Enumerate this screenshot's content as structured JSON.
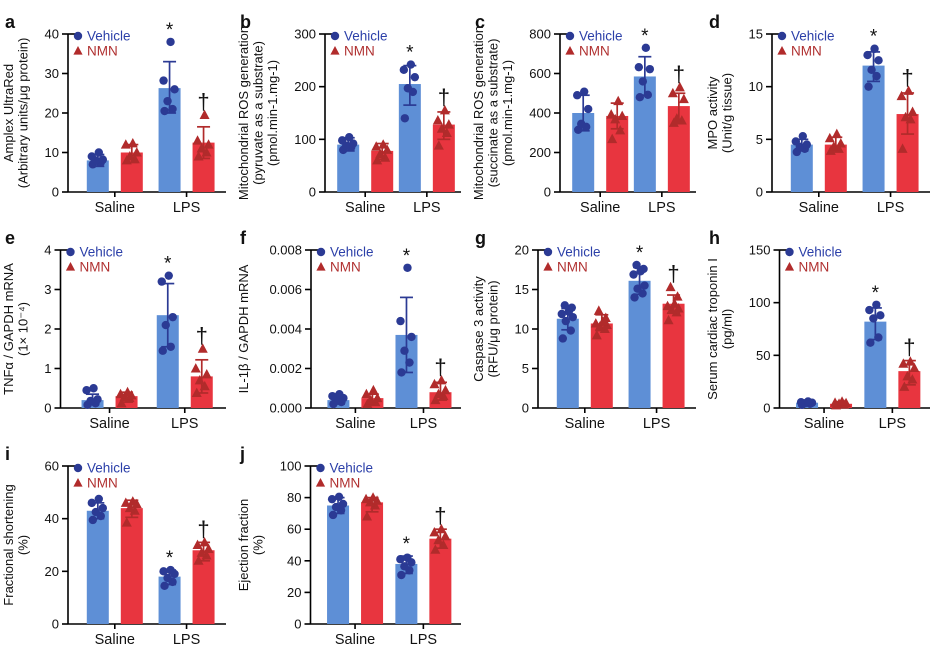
{
  "figure": {
    "legend": {
      "vehicle": "Vehicle",
      "nmn": "NMN"
    },
    "sig_symbols": {
      "lps_vehicle": "*",
      "lps_nmn": "†"
    },
    "colors": {
      "bar_blue": "#5E8FD6",
      "bar_red": "#E8353F",
      "dot_blue": "#2B3A94",
      "dot_red": "#B12B2B",
      "text_blue": "#2B3FA8",
      "text_red": "#B03030",
      "axis": "#000000",
      "letter": "#111111"
    }
  },
  "chart_data": [
    {
      "id": "a",
      "type": "bar",
      "ylabel": [
        "Amplex UltraRed",
        "(Arbitrary units/μg protein)"
      ],
      "ylim": [
        0,
        40
      ],
      "ytick_labels": [
        "0",
        "10",
        "20",
        "30",
        "40"
      ],
      "categories": [
        "Saline",
        "LPS"
      ],
      "series": [
        {
          "name": "Vehicle",
          "marker": "circle",
          "bars": [
            {
              "mean": 8,
              "err": [
                6.5,
                9.5
              ],
              "points": [
                7,
                7.5,
                8,
                8.2,
                9,
                10
              ]
            },
            {
              "mean": 26.3,
              "err": [
                20,
                33
              ],
              "points": [
                20.5,
                21,
                23,
                26,
                28.2,
                38
              ],
              "sig": "*"
            }
          ]
        },
        {
          "name": "NMN",
          "marker": "triangle",
          "bars": [
            {
              "mean": 10,
              "err": [
                7.5,
                12
              ],
              "points": [
                8,
                8.3,
                9,
                10,
                12,
                12.3
              ]
            },
            {
              "mean": 12.5,
              "err": [
                8.5,
                16.5
              ],
              "points": [
                9,
                10,
                11,
                12,
                13,
                19.5
              ],
              "sig": "†"
            }
          ]
        }
      ]
    },
    {
      "id": "b",
      "type": "bar",
      "ylabel": [
        "Mitochondrial ROS generation",
        "(pyruvate as a substrate)",
        "(pmol.min-1.mg-1)"
      ],
      "ylim": [
        0,
        300
      ],
      "ytick_labels": [
        "0",
        "100",
        "200",
        "300"
      ],
      "categories": [
        "Saline",
        "LPS"
      ],
      "series": [
        {
          "name": "Vehicle",
          "marker": "circle",
          "bars": [
            {
              "mean": 90,
              "err": [
                78,
                103
              ],
              "points": [
                80,
                85,
                88,
                92,
                98,
                104
              ]
            },
            {
              "mean": 205,
              "err": [
                165,
                240
              ],
              "points": [
                140,
                190,
                197,
                218,
                232,
                242
              ],
              "sig": "*"
            }
          ]
        },
        {
          "name": "NMN",
          "marker": "triangle",
          "bars": [
            {
              "mean": 78,
              "err": [
                62,
                92
              ],
              "points": [
                60,
                65,
                72,
                80,
                86,
                90
              ]
            },
            {
              "mean": 128,
              "err": [
                100,
                152
              ],
              "points": [
                88,
                112,
                120,
                128,
                136,
                155
              ],
              "sig": "†"
            }
          ]
        }
      ]
    },
    {
      "id": "c",
      "type": "bar",
      "ylabel": [
        "Mitochondrial ROS generation",
        "(succinate as a substrate)",
        "(pmol.min-1.mg-1)"
      ],
      "ylim": [
        0,
        800
      ],
      "ytick_labels": [
        "0",
        "200",
        "400",
        "600",
        "800"
      ],
      "categories": [
        "Saline",
        "LPS"
      ],
      "series": [
        {
          "name": "Vehicle",
          "marker": "circle",
          "bars": [
            {
              "mean": 400,
              "err": [
                310,
                490
              ],
              "points": [
                315,
                330,
                345,
                420,
                490,
                508
              ]
            },
            {
              "mean": 585,
              "err": [
                490,
                685
              ],
              "points": [
                480,
                492,
                560,
                622,
                632,
                730
              ],
              "sig": "*"
            }
          ]
        },
        {
          "name": "NMN",
          "marker": "triangle",
          "bars": [
            {
              "mean": 385,
              "err": [
                320,
                450
              ],
              "points": [
                268,
                312,
                368,
                385,
                392,
                460
              ]
            },
            {
              "mean": 435,
              "err": [
                350,
                500
              ],
              "points": [
                350,
                362,
                372,
                470,
                500,
                530
              ],
              "sig": "†"
            }
          ]
        }
      ]
    },
    {
      "id": "d",
      "type": "bar",
      "ylabel": [
        "MPO activity",
        "(Unit/g tissue)"
      ],
      "ylim": [
        0,
        15
      ],
      "ytick_labels": [
        "0",
        "5",
        "10",
        "15"
      ],
      "categories": [
        "Saline",
        "LPS"
      ],
      "series": [
        {
          "name": "Vehicle",
          "marker": "circle",
          "bars": [
            {
              "mean": 4.5,
              "err": [
                3.9,
                5.0
              ],
              "points": [
                3.8,
                4.1,
                4.3,
                4.5,
                4.8,
                5.3
              ]
            },
            {
              "mean": 12,
              "err": [
                10.5,
                13.3
              ],
              "points": [
                10,
                11,
                11.6,
                12.5,
                13,
                13.6
              ],
              "sig": "*"
            }
          ]
        },
        {
          "name": "NMN",
          "marker": "triangle",
          "bars": [
            {
              "mean": 4.5,
              "err": [
                3.9,
                5.2
              ],
              "points": [
                3.9,
                4.1,
                4.3,
                4.6,
                5.1,
                5.5
              ]
            },
            {
              "mean": 7.4,
              "err": [
                5.5,
                9.4
              ],
              "points": [
                4.1,
                6.9,
                7.1,
                7.6,
                9.1,
                9.6
              ],
              "sig": "†"
            }
          ]
        }
      ]
    },
    {
      "id": "e",
      "type": "bar",
      "ylabel": [
        "TNFα / GAPDH mRNA",
        "(1× 10⁻⁴)"
      ],
      "ylim": [
        0,
        4
      ],
      "ytick_labels": [
        "0",
        "1",
        "2",
        "3",
        "4"
      ],
      "categories": [
        "Saline",
        "LPS"
      ],
      "series": [
        {
          "name": "Vehicle",
          "marker": "circle",
          "bars": [
            {
              "mean": 0.2,
              "err": [
                0.08,
                0.35
              ],
              "points": [
                0.08,
                0.12,
                0.18,
                0.22,
                0.45,
                0.5
              ]
            },
            {
              "mean": 2.35,
              "err": [
                1.55,
                3.15
              ],
              "points": [
                1.45,
                1.55,
                2.1,
                2.3,
                3.2,
                3.35
              ],
              "sig": "*"
            }
          ]
        },
        {
          "name": "NMN",
          "marker": "triangle",
          "bars": [
            {
              "mean": 0.3,
              "err": [
                0.15,
                0.4
              ],
              "points": [
                0.12,
                0.25,
                0.28,
                0.32,
                0.35,
                0.4
              ]
            },
            {
              "mean": 0.8,
              "err": [
                0.38,
                1.22
              ],
              "points": [
                0.38,
                0.55,
                0.7,
                0.85,
                1.0,
                1.5
              ],
              "sig": "†"
            }
          ]
        }
      ]
    },
    {
      "id": "f",
      "type": "bar",
      "ylabel": [
        "IL-1β / GAPDH mRNA"
      ],
      "ylim": [
        0,
        0.008
      ],
      "ytick_labels": [
        "0.000",
        "0.002",
        "0.004",
        "0.006",
        "0.008"
      ],
      "categories": [
        "Saline",
        "LPS"
      ],
      "series": [
        {
          "name": "Vehicle",
          "marker": "circle",
          "bars": [
            {
              "mean": 0.0004,
              "err": [
                0.0002,
                0.0006
              ],
              "points": [
                0.0002,
                0.0003,
                0.0004,
                0.0005,
                0.0006,
                0.0007
              ]
            },
            {
              "mean": 0.0037,
              "err": [
                0.0018,
                0.0056
              ],
              "points": [
                0.0018,
                0.0023,
                0.0029,
                0.0036,
                0.0044,
                0.0071
              ],
              "sig": "*"
            }
          ]
        },
        {
          "name": "NMN",
          "marker": "triangle",
          "bars": [
            {
              "mean": 0.0005,
              "err": [
                0.0002,
                0.0007
              ],
              "points": [
                0.0002,
                0.0003,
                0.0004,
                0.0005,
                0.0007,
                0.0009
              ]
            },
            {
              "mean": 0.0008,
              "err": [
                0.0004,
                0.0013
              ],
              "points": [
                0.0004,
                0.0006,
                0.0007,
                0.0009,
                0.0012,
                0.0014
              ],
              "sig": "†"
            }
          ]
        }
      ]
    },
    {
      "id": "g",
      "type": "bar",
      "ylabel": [
        "Caspase 3 activity",
        "(RFU/μg protein)"
      ],
      "ylim": [
        0,
        20
      ],
      "ytick_labels": [
        "0",
        "5",
        "10",
        "15",
        "20"
      ],
      "categories": [
        "Saline",
        "LPS"
      ],
      "series": [
        {
          "name": "Vehicle",
          "marker": "circle",
          "bars": [
            {
              "mean": 11.3,
              "err": [
                9.9,
                12.6
              ],
              "points": [
                8.8,
                9.8,
                11.0,
                11.5,
                11.9,
                12.2,
                12.7,
                13.0
              ]
            },
            {
              "mean": 16.1,
              "err": [
                14.4,
                17.8
              ],
              "points": [
                14.0,
                14.5,
                15.1,
                15.5,
                16.9,
                17.3,
                17.6,
                18.1
              ],
              "sig": "*"
            }
          ]
        },
        {
          "name": "NMN",
          "marker": "triangle",
          "bars": [
            {
              "mean": 10.7,
              "err": [
                9.8,
                11.8
              ],
              "points": [
                9.2,
                10.0,
                10.3,
                10.5,
                10.7,
                10.9,
                11.4,
                12.3
              ]
            },
            {
              "mean": 13.2,
              "err": [
                12.0,
                14.3
              ],
              "points": [
                11.1,
                12.1,
                12.4,
                12.6,
                12.9,
                13.2,
                14.1,
                15.3
              ],
              "sig": "†"
            }
          ]
        }
      ]
    },
    {
      "id": "h",
      "type": "bar",
      "ylabel": [
        "Serum cardiac troponin I",
        "(pg/ml)"
      ],
      "ylim": [
        0,
        150
      ],
      "ytick_labels": [
        "0",
        "50",
        "100",
        "150"
      ],
      "categories": [
        "Saline",
        "LPS"
      ],
      "series": [
        {
          "name": "Vehicle",
          "marker": "circle",
          "bars": [
            {
              "mean": 5,
              "err": [
                3.5,
                6.5
              ],
              "points": [
                3,
                4,
                4.5,
                5,
                5.5,
                6.2
              ]
            },
            {
              "mean": 82,
              "err": [
                65,
                95
              ],
              "points": [
                62,
                67,
                85,
                88,
                93,
                98
              ],
              "sig": "*"
            }
          ]
        },
        {
          "name": "NMN",
          "marker": "triangle",
          "bars": [
            {
              "mean": 4,
              "err": [
                2.5,
                6
              ],
              "points": [
                2.5,
                3.2,
                4,
                4.6,
                5,
                6
              ]
            },
            {
              "mean": 35,
              "err": [
                22,
                45
              ],
              "points": [
                20,
                27,
                30,
                38,
                42,
                44
              ],
              "sig": "†"
            }
          ]
        }
      ]
    },
    {
      "id": "i",
      "type": "bar",
      "ylabel": [
        "Fractional shortening",
        "(%)"
      ],
      "ylim": [
        0,
        60
      ],
      "ytick_labels": [
        "0",
        "20",
        "40",
        "60"
      ],
      "categories": [
        "Saline",
        "LPS"
      ],
      "series": [
        {
          "name": "Vehicle",
          "marker": "circle",
          "bars": [
            {
              "mean": 43,
              "err": [
                40,
                46
              ],
              "points": [
                39.5,
                41,
                42.5,
                44,
                46,
                47.5
              ]
            },
            {
              "mean": 18,
              "err": [
                15,
                20.5
              ],
              "points": [
                14.5,
                16,
                17.5,
                19,
                20,
                20.5
              ],
              "sig": "*"
            }
          ]
        },
        {
          "name": "NMN",
          "marker": "triangle",
          "bars": [
            {
              "mean": 44,
              "err": [
                40.5,
                47
              ],
              "points": [
                38.5,
                43,
                44,
                45.5,
                46,
                46.5
              ]
            },
            {
              "mean": 28,
              "err": [
                24,
                31
              ],
              "points": [
                24,
                26,
                27,
                28.5,
                30,
                31
              ],
              "sig": "†"
            }
          ]
        }
      ]
    },
    {
      "id": "j",
      "type": "bar",
      "ylabel": [
        "Ejection fraction",
        "(%)"
      ],
      "ylim": [
        0,
        100
      ],
      "ytick_labels": [
        "0",
        "20",
        "40",
        "60",
        "80",
        "100"
      ],
      "categories": [
        "Saline",
        "LPS"
      ],
      "series": [
        {
          "name": "Vehicle",
          "marker": "circle",
          "bars": [
            {
              "mean": 75,
              "err": [
                70,
                80
              ],
              "points": [
                69,
                72,
                74,
                76,
                79,
                80.5
              ]
            },
            {
              "mean": 38,
              "err": [
                32,
                43
              ],
              "points": [
                31,
                34,
                36.5,
                39,
                41,
                42
              ],
              "sig": "*"
            }
          ]
        },
        {
          "name": "NMN",
          "marker": "triangle",
          "bars": [
            {
              "mean": 77,
              "err": [
                71,
                80
              ],
              "points": [
                68,
                75,
                77,
                78,
                79,
                80
              ]
            },
            {
              "mean": 54,
              "err": [
                48,
                60
              ],
              "points": [
                47,
                50,
                53,
                55.5,
                58,
                60
              ],
              "sig": "†"
            }
          ]
        }
      ]
    }
  ]
}
